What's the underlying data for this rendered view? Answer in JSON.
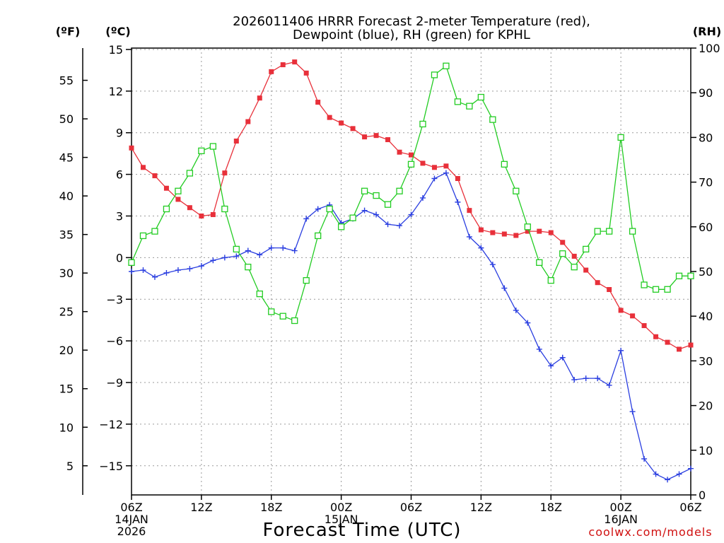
{
  "chart_data": {
    "type": "line",
    "title_line1": "2026011406 HRRR Forecast 2-meter Temperature (red),",
    "title_line2": "Dewpoint (blue), RH (green) for KPHL",
    "xlabel": "Forecast Time (UTC)",
    "credit": "coolwx.com/models",
    "units": {
      "f": "(ºF)",
      "c": "(ºC)",
      "rh": "(RH)"
    },
    "x_range_hours": [
      0,
      48
    ],
    "x_ticks": [
      {
        "hour": 0,
        "label": "06Z",
        "date": "14JAN",
        "year": "2026"
      },
      {
        "hour": 6,
        "label": "12Z"
      },
      {
        "hour": 12,
        "label": "18Z"
      },
      {
        "hour": 18,
        "label": "00Z",
        "date": "15JAN"
      },
      {
        "hour": 24,
        "label": "06Z"
      },
      {
        "hour": 30,
        "label": "12Z"
      },
      {
        "hour": 36,
        "label": "18Z"
      },
      {
        "hour": 42,
        "label": "00Z",
        "date": "16JAN"
      },
      {
        "hour": 48,
        "label": "06Z"
      }
    ],
    "y_left_celsius": {
      "range": [
        -17.1,
        15.1
      ],
      "ticks": [
        -15,
        -12,
        -9,
        -6,
        -3,
        0,
        3,
        6,
        9,
        12,
        15
      ],
      "labels": [
        "−15",
        "−12",
        "−9",
        "−6",
        "−3",
        "0",
        "3",
        "6",
        "9",
        "12",
        "15"
      ]
    },
    "y_left_fahrenheit": {
      "ticks": [
        5,
        10,
        15,
        20,
        25,
        30,
        35,
        40,
        45,
        50,
        55
      ],
      "labels": [
        "5",
        "10",
        "15",
        "20",
        "25",
        "30",
        "35",
        "40",
        "45",
        "50",
        "55"
      ]
    },
    "y_right_rh": {
      "range": [
        0,
        100
      ],
      "ticks": [
        0,
        10,
        20,
        30,
        40,
        50,
        60,
        70,
        80,
        90,
        100
      ],
      "labels": [
        "0",
        "10",
        "20",
        "30",
        "40",
        "50",
        "60",
        "70",
        "80",
        "90",
        "100"
      ]
    },
    "grid": true,
    "series": [
      {
        "name": "Temperature",
        "color": "#e8303a",
        "marker": "filled-square",
        "axis": "celsius",
        "values": [
          7.9,
          6.5,
          5.9,
          5.0,
          4.2,
          3.6,
          3.0,
          3.1,
          6.1,
          8.4,
          9.8,
          11.5,
          13.4,
          13.9,
          14.1,
          13.3,
          11.2,
          10.1,
          9.7,
          9.3,
          8.7,
          8.8,
          8.5,
          7.6,
          7.4,
          6.8,
          6.5,
          6.6,
          5.7,
          3.4,
          2.0,
          1.8,
          1.7,
          1.6,
          1.9,
          1.9,
          1.8,
          1.1,
          0.1,
          -0.9,
          -1.8,
          -2.3,
          -3.8,
          -4.2,
          -4.9,
          -5.7,
          -6.1,
          -6.6,
          -6.3
        ]
      },
      {
        "name": "Dewpoint",
        "color": "#2a3ee0",
        "marker": "plus",
        "axis": "celsius",
        "values": [
          -1.0,
          -0.9,
          -1.4,
          -1.1,
          -0.9,
          -0.8,
          -0.6,
          -0.2,
          0.0,
          0.1,
          0.5,
          0.2,
          0.7,
          0.7,
          0.5,
          2.8,
          3.5,
          3.8,
          2.5,
          2.8,
          3.4,
          3.1,
          2.4,
          2.3,
          3.1,
          4.3,
          5.7,
          6.1,
          4.0,
          1.5,
          0.7,
          -0.5,
          -2.2,
          -3.8,
          -4.7,
          -6.6,
          -7.8,
          -7.2,
          -8.8,
          -8.7,
          -8.7,
          -9.2,
          -6.7,
          -11.1,
          -14.5,
          -15.6,
          -16.0,
          -15.6,
          -15.2
        ]
      },
      {
        "name": "RH",
        "color": "#22cc22",
        "marker": "open-square",
        "axis": "rh",
        "values": [
          52,
          58,
          59,
          64,
          68,
          72,
          77,
          78,
          64,
          55,
          51,
          45,
          41,
          40,
          39,
          48,
          58,
          64,
          60,
          62,
          68,
          67,
          65,
          68,
          74,
          83,
          94,
          96,
          88,
          87,
          89,
          84,
          74,
          68,
          60,
          52,
          48,
          54,
          51,
          55,
          59,
          59,
          80,
          59,
          47,
          46,
          46,
          49,
          49
        ]
      }
    ]
  }
}
